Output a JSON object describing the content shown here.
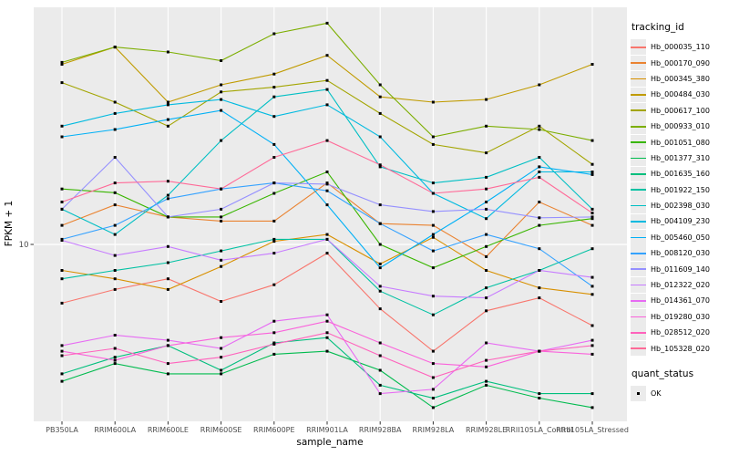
{
  "figure": {
    "x_axis_title": "sample_name",
    "y_axis_title": "FPKM + 1",
    "y_tick_label": "10",
    "panel_background": "#EBEBEB",
    "gridline_color": "#FFFFFF",
    "tick_label_color": "#4D4D4D",
    "axis_title_color": "#000000",
    "point_color": "#000000"
  },
  "legend": {
    "tracking_title": "tracking_id",
    "quant_title": "quant_status",
    "quant_items": [
      {
        "label": "OK",
        "marker": "black-square"
      }
    ],
    "key_fill": "#EBEBEB",
    "position": "right"
  },
  "chart_data": {
    "type": "line",
    "title": "",
    "xlabel": "sample_name",
    "ylabel": "FPKM + 1",
    "y_scale": "log10",
    "y_tick_values": [
      10
    ],
    "ylim_approx": [
      1.8,
      97
    ],
    "grid": "major-on-white",
    "legend_position": "right",
    "point_marker": "filled-black-square (quant_status OK at every point)",
    "categories": [
      "PB350LA",
      "RRIM600LA",
      "RRIM600LE",
      "RRIM600SE",
      "RRIM600PE",
      "RRIM901LA",
      "RRIM928BA",
      "RRIM928LA",
      "RRIM928LE",
      "RRII105LA_Control",
      "RRII105LA_Stressed"
    ],
    "series": [
      {
        "name": "Hb_000035_110",
        "color": "#F8766D",
        "values": [
          5.7,
          6.5,
          7.2,
          5.8,
          6.8,
          9.2,
          5.4,
          3.6,
          5.3,
          6.0,
          4.6
        ]
      },
      {
        "name": "Hb_000170_090",
        "color": "#EA8331",
        "values": [
          12,
          14.6,
          13,
          12.5,
          12.5,
          18,
          12.2,
          12,
          8.9,
          15,
          12
        ]
      },
      {
        "name": "Hb_000345_380",
        "color": "#D89000",
        "values": [
          7.8,
          7.2,
          6.5,
          8.1,
          10.3,
          11,
          8.3,
          10.7,
          7.8,
          6.6,
          6.2
        ]
      },
      {
        "name": "Hb_000484_030",
        "color": "#C09B00",
        "values": [
          56,
          66,
          39,
          46,
          51,
          61,
          41,
          39,
          40,
          46,
          56
        ]
      },
      {
        "name": "Hb_000617_100",
        "color": "#A3A500",
        "values": [
          47,
          39,
          31,
          43,
          45,
          48,
          35,
          26,
          24,
          31,
          21.5
        ]
      },
      {
        "name": "Hb_000933_010",
        "color": "#7CAE00",
        "values": [
          57,
          66,
          63,
          58,
          75,
          83,
          46,
          28,
          31,
          30,
          27
        ]
      },
      {
        "name": "Hb_001051_080",
        "color": "#39B600",
        "values": [
          17,
          16.4,
          13,
          13,
          16.3,
          20,
          10,
          8.0,
          9.8,
          12,
          12.8
        ]
      },
      {
        "name": "Hb_001377_310",
        "color": "#00BB4E",
        "values": [
          2.7,
          3.2,
          2.9,
          2.9,
          3.5,
          3.6,
          3.0,
          2.1,
          2.6,
          2.3,
          2.1
        ]
      },
      {
        "name": "Hb_001635_160",
        "color": "#00BF7D",
        "values": [
          2.9,
          3.4,
          3.8,
          3.0,
          3.9,
          4.1,
          2.6,
          2.3,
          2.7,
          2.4,
          2.4
        ]
      },
      {
        "name": "Hb_001922_150",
        "color": "#00C1A3",
        "values": [
          7.2,
          7.8,
          8.4,
          9.4,
          10.5,
          10.5,
          6.4,
          5.1,
          6.6,
          7.8,
          9.6
        ]
      },
      {
        "name": "Hb_002398_030",
        "color": "#00BFC4",
        "values": [
          14,
          11,
          16,
          27,
          41,
          44,
          21,
          18,
          19,
          23,
          14
        ]
      },
      {
        "name": "Hb_004109_230",
        "color": "#00BAE0",
        "values": [
          31,
          35,
          38,
          40,
          34,
          38,
          28,
          16.3,
          12.8,
          20,
          20
        ]
      },
      {
        "name": "Hb_005460_050",
        "color": "#00B0F6",
        "values": [
          28,
          30,
          33,
          36,
          26,
          14.6,
          8.0,
          11,
          15,
          21,
          19.5
        ]
      },
      {
        "name": "Hb_008120_030",
        "color": "#35A2FF",
        "values": [
          10.5,
          12,
          15.5,
          17,
          18,
          16.7,
          12.2,
          9.4,
          11,
          9.6,
          6.7
        ]
      },
      {
        "name": "Hb_011609_140",
        "color": "#9590FF",
        "values": [
          14,
          23,
          13,
          14,
          18,
          17.8,
          14.6,
          13.7,
          14,
          12.9,
          13
        ]
      },
      {
        "name": "Hb_012322_020",
        "color": "#C77CFF",
        "values": [
          10.4,
          9.0,
          9.8,
          8.6,
          9.2,
          10.5,
          6.7,
          6.1,
          6.0,
          7.8,
          7.3
        ]
      },
      {
        "name": "Hb_014361_070",
        "color": "#E76BF3",
        "values": [
          3.8,
          4.2,
          4.0,
          3.7,
          4.8,
          5.1,
          2.4,
          2.5,
          3.9,
          3.6,
          4.0
        ]
      },
      {
        "name": "Hb_019280_030",
        "color": "#FA62DB",
        "values": [
          3.6,
          3.3,
          3.8,
          4.1,
          4.3,
          4.8,
          3.9,
          3.2,
          3.1,
          3.6,
          3.5
        ]
      },
      {
        "name": "Hb_028512_020",
        "color": "#FF62BC",
        "values": [
          3.45,
          3.7,
          3.2,
          3.4,
          3.85,
          4.3,
          3.45,
          2.8,
          3.3,
          3.6,
          3.8
        ]
      },
      {
        "name": "Hb_105328_020",
        "color": "#FF6A98",
        "values": [
          15,
          18,
          18.3,
          17,
          23,
          27,
          21.4,
          16.3,
          17,
          19,
          13.5
        ]
      }
    ]
  }
}
